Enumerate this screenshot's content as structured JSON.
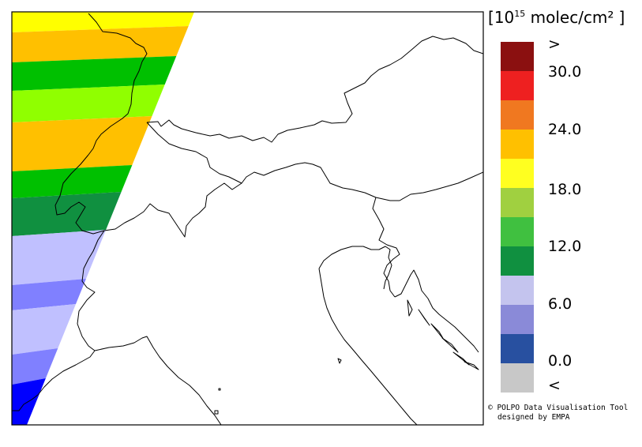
{
  "legend": {
    "unit_open_bracket": "[",
    "unit_base": "10",
    "unit_exponent": "15",
    "unit_rest": " molec/cm²",
    "unit_close_bracket": "]",
    "colors_top_to_bottom": [
      "#8b1010",
      "#ee2020",
      "#f07820",
      "#ffc000",
      "#ffff20",
      "#a0d040",
      "#40c040",
      "#109040",
      "#c4c4ee",
      "#8a8ad8",
      "#2850a0",
      "#c8c8c8"
    ],
    "labels": [
      ">",
      "30.0",
      "24.0",
      "18.0",
      "12.0",
      "6.0",
      "0.0",
      "<"
    ]
  },
  "swath": {
    "colors_top_to_bottom": [
      "#ffff00",
      "#ffc000",
      "#00c000",
      "#90ff00",
      "#ffc000",
      "#00c000",
      "#109040",
      "#c0c0ff",
      "#8080ff",
      "#c0c0ff",
      "#8080ff",
      "#0000ff",
      "#8080ff",
      "#0000ff"
    ]
  },
  "credits": {
    "line1": "© POLPO Data Visualisation Tool",
    "line2": "designed by EMPA"
  }
}
